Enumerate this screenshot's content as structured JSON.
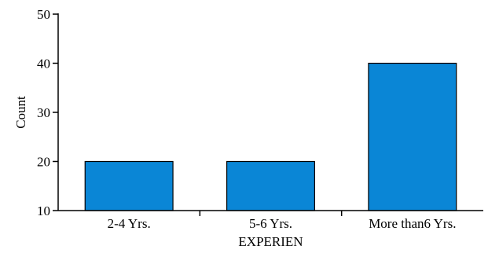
{
  "chart_data": {
    "type": "bar",
    "categories": [
      "2-4 Yrs.",
      "5-6 Yrs.",
      "More than6 Yrs."
    ],
    "values": [
      20,
      20,
      40
    ],
    "title": "",
    "xlabel": "EXPERIEN",
    "ylabel": "Count",
    "ylim": [
      10,
      50
    ],
    "yticks": [
      10,
      20,
      30,
      40,
      50
    ],
    "grid": false,
    "bar_color": "#0a86d6"
  }
}
